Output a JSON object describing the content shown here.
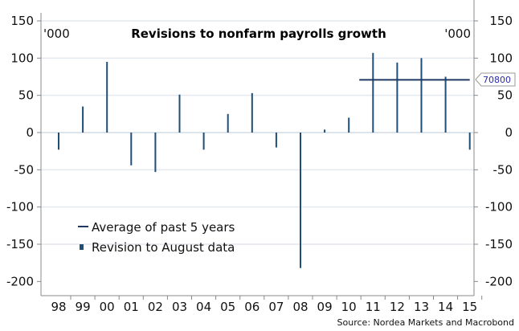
{
  "chart_data": {
    "type": "bar",
    "title": "Revisions to nonfarm payrolls growth",
    "unit_left": "'000",
    "unit_right": "'000",
    "categories": [
      "98",
      "99",
      "00",
      "01",
      "02",
      "03",
      "04",
      "05",
      "06",
      "07",
      "08",
      "09",
      "10",
      "11",
      "12",
      "13",
      "14",
      "15"
    ],
    "series": [
      {
        "name": "Revision to August data",
        "type": "bar",
        "color": "#1f4e79",
        "values": [
          -23,
          35,
          95,
          -44,
          -53,
          51,
          -23,
          25,
          53,
          -20,
          -182,
          4,
          20,
          107,
          94,
          100,
          75,
          -23
        ]
      },
      {
        "name": "Average of past 5 years",
        "type": "line",
        "color": "#1f3864",
        "value": 70.8,
        "from": "10",
        "to": "15",
        "label": "70800"
      }
    ],
    "ylim": [
      -200,
      150
    ],
    "yticks": [
      -200,
      -150,
      -100,
      -50,
      0,
      50,
      100,
      150
    ],
    "grid": true,
    "legend": "bottom-left",
    "source": "Source: Nordea Markets and Macrobond"
  }
}
